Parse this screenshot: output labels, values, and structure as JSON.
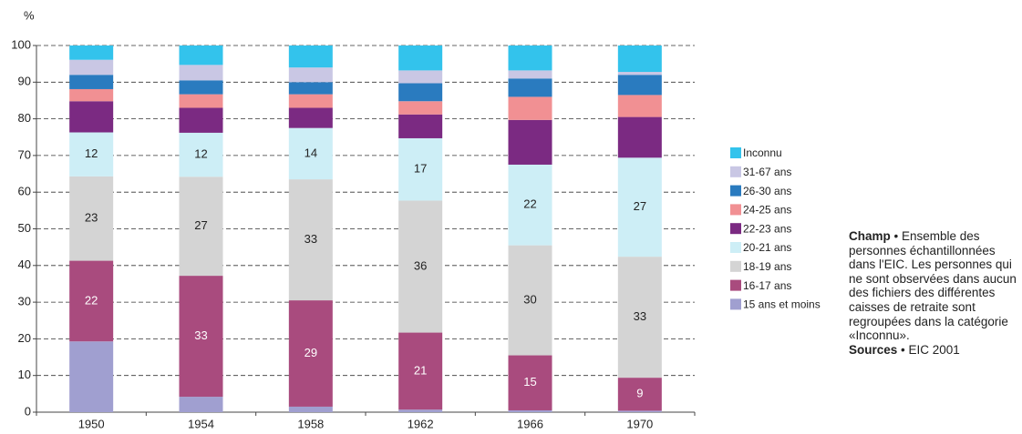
{
  "chart_data": {
    "type": "stacked_bar",
    "y_unit": "%",
    "categories": [
      "1950",
      "1954",
      "1958",
      "1962",
      "1966",
      "1970"
    ],
    "ylim": [
      0,
      100
    ],
    "yticks": [
      0,
      10,
      20,
      30,
      40,
      50,
      60,
      70,
      80,
      90,
      100
    ],
    "grid": true,
    "series": [
      {
        "name": "15 ans et moins",
        "color": "#a09fd0",
        "values": [
          19.3,
          4.2,
          1.5,
          0.7,
          0.5,
          0.4
        ]
      },
      {
        "name": "16-17 ans",
        "color": "#a94b7e",
        "labels": true,
        "label_color": "#ffffff",
        "values": [
          22,
          33,
          29,
          21,
          15,
          9
        ]
      },
      {
        "name": "18-19 ans",
        "color": "#d4d4d4",
        "labels": true,
        "label_color": "#222222",
        "values": [
          23,
          27,
          33,
          36,
          30,
          33
        ]
      },
      {
        "name": "20-21 ans",
        "color": "#cdeef6",
        "labels": true,
        "label_color": "#222222",
        "values": [
          12,
          12,
          14,
          17,
          22,
          27
        ]
      },
      {
        "name": "22-23 ans",
        "color": "#7b2a82",
        "values": [
          8.5,
          6.8,
          5.5,
          6.5,
          12.2,
          11.1
        ]
      },
      {
        "name": "24-25 ans",
        "color": "#f19093",
        "values": [
          3.3,
          3.7,
          3.7,
          3.6,
          6.3,
          6
        ]
      },
      {
        "name": "26-30 ans",
        "color": "#2a7bbf",
        "values": [
          3.9,
          3.8,
          3.3,
          4.9,
          5,
          5.5
        ]
      },
      {
        "name": "31-67 ans",
        "color": "#c9c7e4",
        "values": [
          4.1,
          4.2,
          4,
          3.5,
          2.2,
          0.8
        ]
      },
      {
        "name": "Inconnu",
        "color": "#33c3ec",
        "values": [
          3.9,
          5.3,
          6,
          6.8,
          6.8,
          7.2
        ]
      }
    ]
  },
  "notes": {
    "champ_label": "Champ",
    "champ_text": "• Ensemble des personnes échantillonnées dans l'EIC. Les personnes qui ne sont observées dans aucun des fichiers des différentes caisses de retraite sont regroupées dans la catégorie «Inconnu».",
    "sources_label": "Sources",
    "sources_text": "• EIC 2001"
  }
}
